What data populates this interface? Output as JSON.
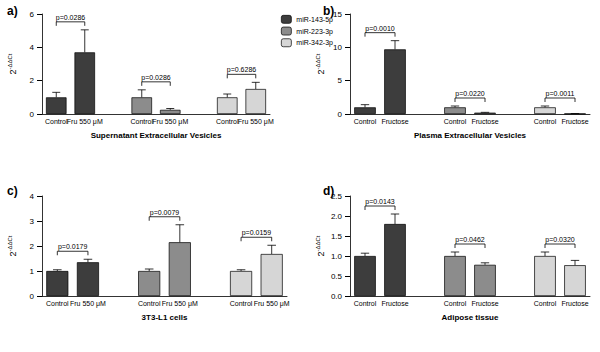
{
  "chart_data": [
    {
      "type": "bar",
      "label": "a)",
      "x_label": "Supernatant Extracellular Vesicles",
      "y_label": "2-ΔΔCt",
      "categories": [
        "Control",
        "Fru 550 μM",
        null,
        "Control",
        "Fru 550 μM",
        null,
        "Control",
        "Fru 550 μM"
      ],
      "series": [
        {
          "name": "miR-143-5p",
          "color": "#3d3d3d",
          "values": [
            1.0,
            3.7,
            null,
            null,
            null,
            null,
            null,
            null
          ],
          "errors": [
            0.3,
            1.35,
            null,
            null,
            null,
            null,
            null,
            null
          ]
        },
        {
          "name": "miR-223-3p",
          "color": "#8c8c8c",
          "values": [
            null,
            null,
            null,
            1.0,
            0.25,
            null,
            null,
            null
          ],
          "errors": [
            null,
            null,
            null,
            0.45,
            0.08,
            null,
            null,
            null
          ]
        },
        {
          "name": "miR-342-3p",
          "color": "#d6d6d6",
          "values": [
            null,
            null,
            null,
            null,
            null,
            null,
            1.0,
            1.5
          ],
          "errors": [
            null,
            null,
            null,
            null,
            null,
            null,
            0.2,
            0.4
          ]
        }
      ],
      "ylim": [
        0,
        6
      ],
      "yticks": [
        0,
        2,
        4,
        6
      ],
      "grid": false,
      "legend": "upper right",
      "annotations": [
        {
          "text": "p=0.0286",
          "from": 0,
          "to": 1
        },
        {
          "text": "p=0.0286",
          "from": 3,
          "to": 4
        },
        {
          "text": "p=0.6286",
          "from": 6,
          "to": 7
        }
      ]
    },
    {
      "type": "bar",
      "label": "b)",
      "x_label": "Plasma Extracellular Vesicles",
      "y_label": "2-ΔΔCt",
      "categories": [
        "Control",
        "Fructose",
        null,
        "Control",
        "Fructose",
        null,
        "Control",
        "Fructose"
      ],
      "series": [
        {
          "name": "miR-143-5p",
          "color": "#3d3d3d",
          "values": [
            1.0,
            9.7,
            null,
            null,
            null,
            null,
            null,
            null
          ],
          "errors": [
            0.4,
            1.3,
            null,
            null,
            null,
            null,
            null,
            null
          ]
        },
        {
          "name": "miR-223-3p",
          "color": "#8c8c8c",
          "values": [
            null,
            null,
            null,
            1.0,
            0.2,
            null,
            null,
            null
          ],
          "errors": [
            null,
            null,
            null,
            0.2,
            0.05,
            null,
            null,
            null
          ]
        },
        {
          "name": "miR-342-3p",
          "color": "#d6d6d6",
          "values": [
            null,
            null,
            null,
            null,
            null,
            null,
            1.0,
            0.05
          ],
          "errors": [
            null,
            null,
            null,
            null,
            null,
            null,
            0.2,
            0.02
          ]
        }
      ],
      "ylim": [
        0,
        15
      ],
      "yticks": [
        0,
        5,
        10,
        15
      ],
      "grid": false,
      "annotations": [
        {
          "text": "p=0.0010",
          "from": 0,
          "to": 1
        },
        {
          "text": "p=0.0220",
          "from": 3,
          "to": 4
        },
        {
          "text": "p=0.0011",
          "from": 6,
          "to": 7
        }
      ]
    },
    {
      "type": "bar",
      "label": "c)",
      "x_label": "3T3-L1 cells",
      "y_label": "2-ΔΔCt",
      "categories": [
        "Control",
        "Fru 550 μM",
        null,
        "Control",
        "Fru 550 μM",
        null,
        "Control",
        "Fru 550 μM"
      ],
      "series": [
        {
          "name": "miR-143-5p",
          "color": "#3d3d3d",
          "values": [
            1.0,
            1.35,
            null,
            null,
            null,
            null,
            null,
            null
          ],
          "errors": [
            0.05,
            0.12,
            null,
            null,
            null,
            null,
            null,
            null
          ]
        },
        {
          "name": "miR-223-3p",
          "color": "#8c8c8c",
          "values": [
            null,
            null,
            null,
            1.0,
            2.15,
            null,
            null,
            null
          ],
          "errors": [
            null,
            null,
            null,
            0.08,
            0.7,
            null,
            null,
            null
          ]
        },
        {
          "name": "miR-342-3p",
          "color": "#d6d6d6",
          "values": [
            null,
            null,
            null,
            null,
            null,
            null,
            1.0,
            1.68
          ],
          "errors": [
            null,
            null,
            null,
            null,
            null,
            null,
            0.05,
            0.35
          ]
        }
      ],
      "ylim": [
        0,
        4
      ],
      "yticks": [
        0,
        1,
        2,
        3,
        4
      ],
      "grid": false,
      "annotations": [
        {
          "text": "p=0.0179",
          "from": 0,
          "to": 1
        },
        {
          "text": "p=0.0079",
          "from": 3,
          "to": 4
        },
        {
          "text": "p=0.0159",
          "from": 6,
          "to": 7
        }
      ]
    },
    {
      "type": "bar",
      "label": "d)",
      "x_label": "Adipose tissue",
      "y_label": "2-ΔΔCt",
      "categories": [
        "Control",
        "Fructose",
        null,
        "Control",
        "Fructose",
        null,
        "Control",
        "Fructose"
      ],
      "series": [
        {
          "name": "miR-143-5p",
          "color": "#3d3d3d",
          "values": [
            1.0,
            1.8,
            null,
            null,
            null,
            null,
            null,
            null
          ],
          "errors": [
            0.07,
            0.25,
            null,
            null,
            null,
            null,
            null,
            null
          ]
        },
        {
          "name": "miR-223-3p",
          "color": "#8c8c8c",
          "values": [
            null,
            null,
            null,
            1.0,
            0.78,
            null,
            null,
            null
          ],
          "errors": [
            null,
            null,
            null,
            0.1,
            0.05,
            null,
            null,
            null
          ]
        },
        {
          "name": "miR-342-3p",
          "color": "#d6d6d6",
          "values": [
            null,
            null,
            null,
            null,
            null,
            null,
            1.0,
            0.77
          ],
          "errors": [
            null,
            null,
            null,
            null,
            null,
            null,
            0.1,
            0.12
          ]
        }
      ],
      "ylim": [
        0,
        2.5
      ],
      "yticks": [
        {
          "value": 0,
          "label": "0.0"
        },
        0.5,
        {
          "value": 1,
          "label": "1.0"
        },
        1.5,
        {
          "value": 2,
          "label": "2.0"
        },
        2.5
      ],
      "grid": false,
      "annotations": [
        {
          "text": "p=0.0143",
          "from": 0,
          "to": 1
        },
        {
          "text": "p=0.0462",
          "from": 3,
          "to": 4
        },
        {
          "text": "p=0.0320",
          "from": 6,
          "to": 7
        }
      ]
    }
  ]
}
